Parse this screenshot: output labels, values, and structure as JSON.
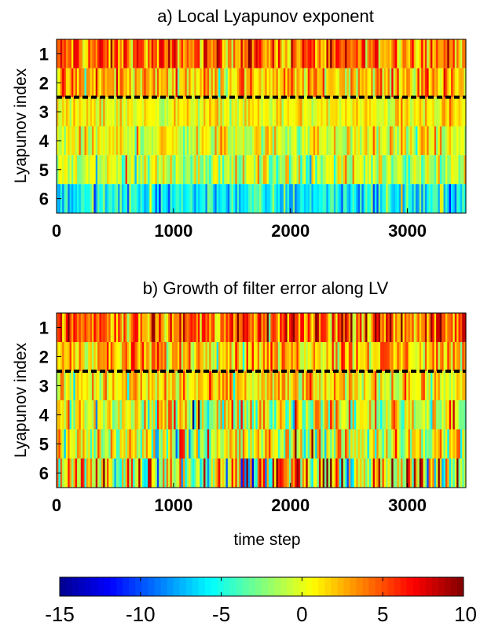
{
  "colors": {
    "colormap": "jet",
    "jet_stops": [
      "#00008f",
      "#0000ff",
      "#00ffff",
      "#ffff00",
      "#ff0000",
      "#800000"
    ],
    "threshold_line": "#000000"
  },
  "chart_data": [
    {
      "type": "heatmap",
      "title": "a) Local Lyapunov exponent",
      "xlabel": "",
      "ylabel": "Lyapunov index",
      "xlim": [
        0,
        3500
      ],
      "ylim": [
        0.5,
        6.5
      ],
      "x_ticks": [
        0,
        1000,
        2000,
        3000
      ],
      "x_tick_labels": [
        "0",
        "1000",
        "2000",
        "3000"
      ],
      "y_ticks": [
        1,
        2,
        3,
        4,
        5,
        6
      ],
      "y_tick_labels": [
        "1",
        "2",
        "3",
        "4",
        "5",
        "6"
      ],
      "rows": [
        {
          "index": 1,
          "mean": 4.2,
          "spread": 3.0
        },
        {
          "index": 2,
          "mean": 2.2,
          "spread": 2.5
        },
        {
          "index": 3,
          "mean": 0.5,
          "spread": 1.6
        },
        {
          "index": 4,
          "mean": 0.0,
          "spread": 2.3
        },
        {
          "index": 5,
          "mean": -0.8,
          "spread": 2.6
        },
        {
          "index": 6,
          "mean": -5.5,
          "spread": 2.6
        }
      ],
      "threshold_line_y": 2.5,
      "threshold_line_style": "dashed",
      "clim": [
        -15,
        10
      ]
    },
    {
      "type": "heatmap",
      "title": "b) Growth of filter error along LV",
      "xlabel": "time step",
      "ylabel": "Lyapunov index",
      "xlim": [
        0,
        3500
      ],
      "ylim": [
        0.5,
        6.5
      ],
      "x_ticks": [
        0,
        1000,
        2000,
        3000
      ],
      "x_tick_labels": [
        "0",
        "1000",
        "2000",
        "3000"
      ],
      "y_ticks": [
        1,
        2,
        3,
        4,
        5,
        6
      ],
      "y_tick_labels": [
        "1",
        "2",
        "3",
        "4",
        "5",
        "6"
      ],
      "rows": [
        {
          "index": 1,
          "mean": 4.5,
          "spread": 3.0
        },
        {
          "index": 2,
          "mean": 2.5,
          "spread": 2.8
        },
        {
          "index": 3,
          "mean": 1.2,
          "spread": 2.6
        },
        {
          "index": 4,
          "mean": 0.2,
          "spread": 3.6
        },
        {
          "index": 5,
          "mean": 0.0,
          "spread": 4.0
        },
        {
          "index": 6,
          "mean": 1.0,
          "spread": 6.0
        }
      ],
      "threshold_line_y": 2.5,
      "threshold_line_style": "dashed",
      "clim": [
        -15,
        10
      ]
    },
    {
      "type": "colorbar",
      "orientation": "horizontal",
      "clim": [
        -15,
        10
      ],
      "ticks": [
        -15,
        -10,
        -5,
        0,
        5,
        10
      ],
      "tick_labels": [
        "-15",
        "-10",
        "-5",
        "0",
        "5",
        "10"
      ]
    }
  ]
}
